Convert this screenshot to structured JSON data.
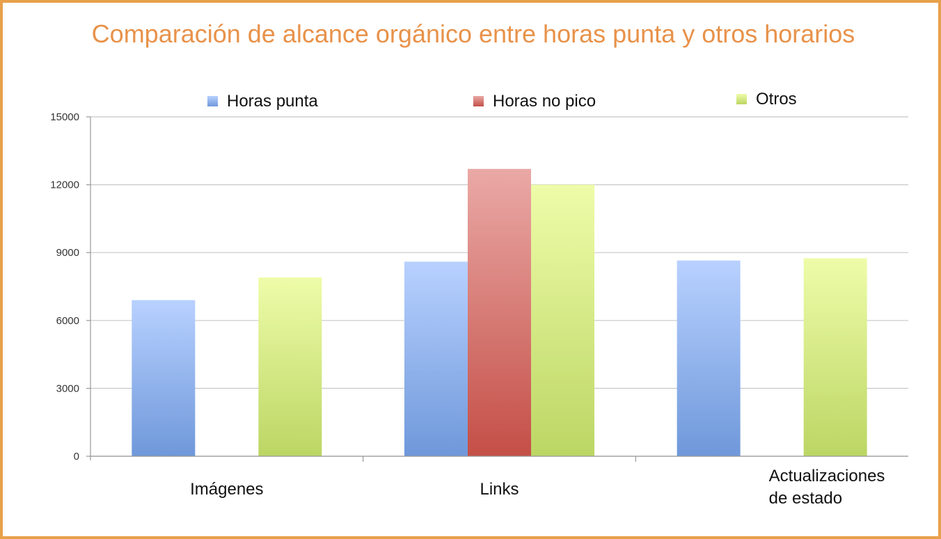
{
  "chart_data": {
    "type": "bar",
    "title": "Comparación de alcance orgánico entre horas punta y otros horarios",
    "categories": [
      [
        "Imágenes"
      ],
      [
        "Links"
      ],
      [
        "Actualizaciones",
        "de estado"
      ]
    ],
    "series": [
      {
        "name": "Horas punta",
        "values": [
          6900,
          8600,
          8650
        ],
        "color": "#7FA6E6"
      },
      {
        "name": "Horas no pico",
        "values": [
          null,
          12700,
          null
        ],
        "color": "#D45F58"
      },
      {
        "name": "Otros",
        "values": [
          7900,
          12000,
          8750
        ],
        "color": "#C7DE72"
      }
    ],
    "ylim": [
      0,
      15000
    ],
    "yticks": [
      0,
      3000,
      6000,
      9000,
      12000,
      15000
    ],
    "grid": true,
    "legend_position": "top"
  }
}
